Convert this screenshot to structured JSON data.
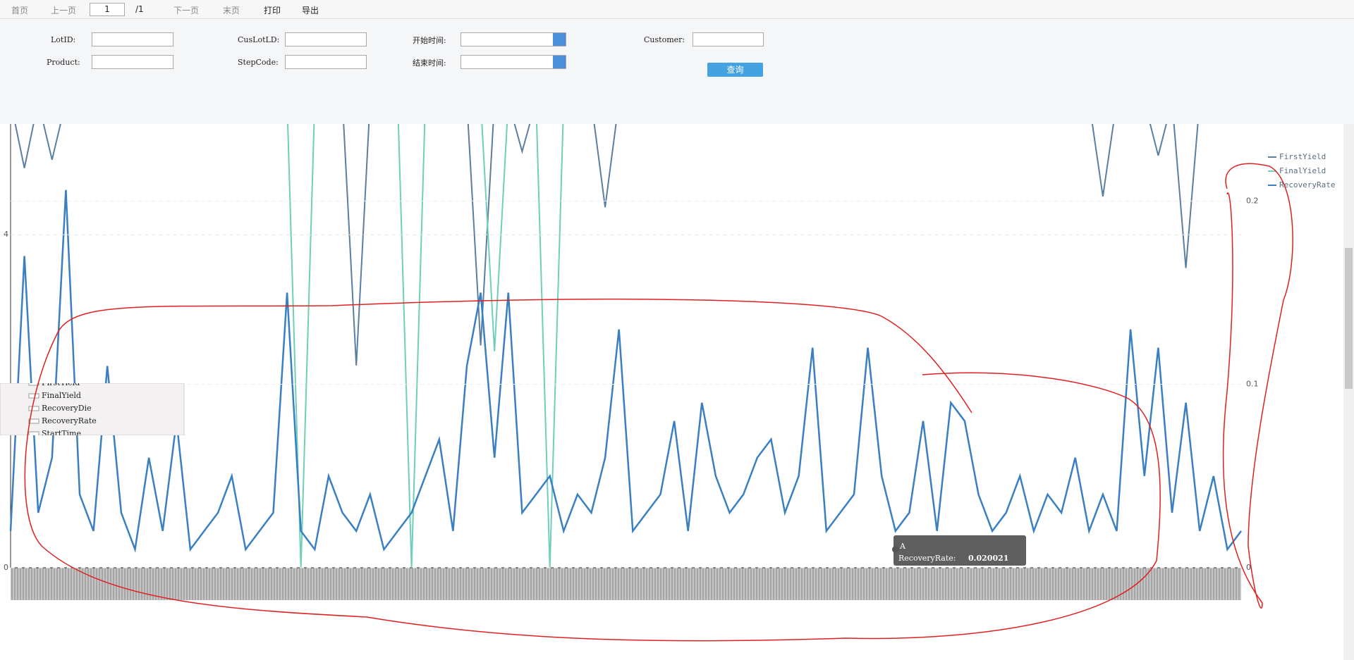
{
  "toolbar": {
    "first": "首页",
    "prev": "上一页",
    "page": "1",
    "total": "/1",
    "next": "下一页",
    "last": "末页",
    "print": "打印",
    "export": "导出"
  },
  "form": {
    "lotid": "LotID:",
    "cuslotid": "CusLotLD:",
    "start": "开始时间:",
    "customer": "Customer:",
    "product": "Product:",
    "stepcode": "StepCode:",
    "end": "结束时间:",
    "query": "查询"
  },
  "field_list": [
    "FirstYield",
    "FinalYield",
    "RecoveryDie",
    "RecoveryRate",
    "StartTime"
  ],
  "tooltip": {
    "category": "A",
    "label": "RecoveryRate:",
    "value": 0.020021
  },
  "chart_data": {
    "type": "line",
    "ylim": [
      0,
      5.33
    ],
    "yticks": [
      0,
      4
    ],
    "y2lim": [
      0,
      0.242
    ],
    "y2ticks": [
      0,
      0.1,
      0.2
    ],
    "grid": true,
    "legend": "top-right",
    "series": [
      {
        "name": "FirstYield",
        "color": "#5b7fa0",
        "values": [
          5.6,
          4.8,
          5.6,
          4.9,
          5.6,
          5.6,
          5.6,
          5.6,
          5.6,
          5.6,
          5.6,
          5.6,
          5.6,
          5.6,
          5.6,
          5.6,
          5.6,
          5.6,
          5.6,
          5.6,
          5.6,
          5.6,
          5.6,
          5.6,
          5.6,
          2.43,
          5.6,
          5.6,
          5.6,
          5.6,
          5.6,
          5.6,
          5.6,
          5.6,
          2.67,
          5.6,
          5.6,
          5.0,
          5.6,
          5.6,
          5.6,
          5.6,
          5.6,
          4.33,
          5.6,
          5.6,
          5.6,
          5.6,
          5.6,
          5.6,
          5.6,
          5.6,
          5.6,
          5.6,
          5.6,
          5.6,
          5.6,
          5.6,
          5.6,
          5.6,
          5.6,
          5.6,
          5.6,
          5.6,
          5.6,
          5.6,
          5.6,
          5.6,
          5.6,
          5.6,
          5.6,
          5.6,
          5.6,
          5.6,
          5.6,
          5.6,
          5.6,
          5.6,
          5.6,
          4.46,
          5.6,
          5.6,
          5.6,
          4.95,
          5.6,
          3.6,
          5.6,
          5.6,
          5.6,
          5.6
        ]
      },
      {
        "name": "FinalYield",
        "color": "#6fcfb8",
        "values": [
          5.6,
          5.6,
          5.6,
          5.6,
          5.6,
          5.6,
          5.6,
          5.6,
          5.6,
          5.6,
          5.6,
          5.6,
          5.6,
          5.6,
          5.6,
          5.6,
          5.6,
          5.6,
          5.6,
          5.6,
          5.6,
          0,
          5.6,
          5.6,
          5.6,
          5.6,
          5.6,
          5.6,
          5.6,
          0,
          5.6,
          5.6,
          5.6,
          5.6,
          5.6,
          2.6,
          5.6,
          5.6,
          5.6,
          0,
          5.6,
          5.6,
          5.6,
          5.6,
          5.6,
          5.6,
          5.6,
          5.6,
          5.6,
          5.6,
          5.6,
          5.6,
          5.6,
          5.6,
          5.6,
          5.6,
          5.6,
          5.6,
          5.6,
          5.6,
          5.6,
          5.6,
          5.6,
          5.6,
          5.6,
          5.6,
          5.6,
          5.6,
          5.6,
          5.6,
          5.6,
          5.6,
          5.6,
          5.6,
          5.6,
          5.6,
          5.6,
          5.6,
          5.6,
          5.6,
          5.6,
          5.6,
          5.6,
          5.6,
          5.6,
          5.6,
          5.6,
          5.6,
          5.6,
          5.6
        ]
      },
      {
        "name": "RecoveryRate",
        "color": "#3a7fc1",
        "axis": "y2",
        "values": [
          0.02,
          0.17,
          0.03,
          0.06,
          0.206,
          0.04,
          0.02,
          0.11,
          0.03,
          0.01,
          0.06,
          0.02,
          0.08,
          0.01,
          0.02,
          0.03,
          0.05,
          0.01,
          0.02,
          0.03,
          0.15,
          0.02,
          0.01,
          0.05,
          0.03,
          0.02,
          0.04,
          0.01,
          0.02,
          0.03,
          0.05,
          0.07,
          0.02,
          0.11,
          0.15,
          0.06,
          0.15,
          0.03,
          0.04,
          0.05,
          0.02,
          0.04,
          0.03,
          0.06,
          0.13,
          0.02,
          0.03,
          0.04,
          0.08,
          0.02,
          0.09,
          0.05,
          0.03,
          0.04,
          0.06,
          0.07,
          0.03,
          0.05,
          0.12,
          0.02,
          0.03,
          0.04,
          0.12,
          0.05,
          0.02,
          0.03,
          0.08,
          0.02,
          0.09,
          0.08,
          0.04,
          0.02,
          0.03,
          0.05,
          0.02,
          0.04,
          0.03,
          0.06,
          0.02,
          0.04,
          0.02,
          0.13,
          0.05,
          0.12,
          0.03,
          0.09,
          0.02,
          0.05,
          0.01,
          0.02
        ]
      }
    ]
  }
}
